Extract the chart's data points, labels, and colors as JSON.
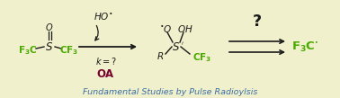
{
  "bg_color": "#f0f0cc",
  "fig_width": 3.78,
  "fig_height": 1.09,
  "dpi": 100,
  "subtitle": "Fundamental Studies by Pulse Radioylsis",
  "subtitle_color": "#3a6ea5",
  "subtitle_fontsize": 6.8,
  "green": "#4aaa00",
  "black": "#1a1a1a",
  "dark_red": "#7a0030",
  "xlim": [
    0,
    378
  ],
  "ylim": [
    0,
    109
  ]
}
